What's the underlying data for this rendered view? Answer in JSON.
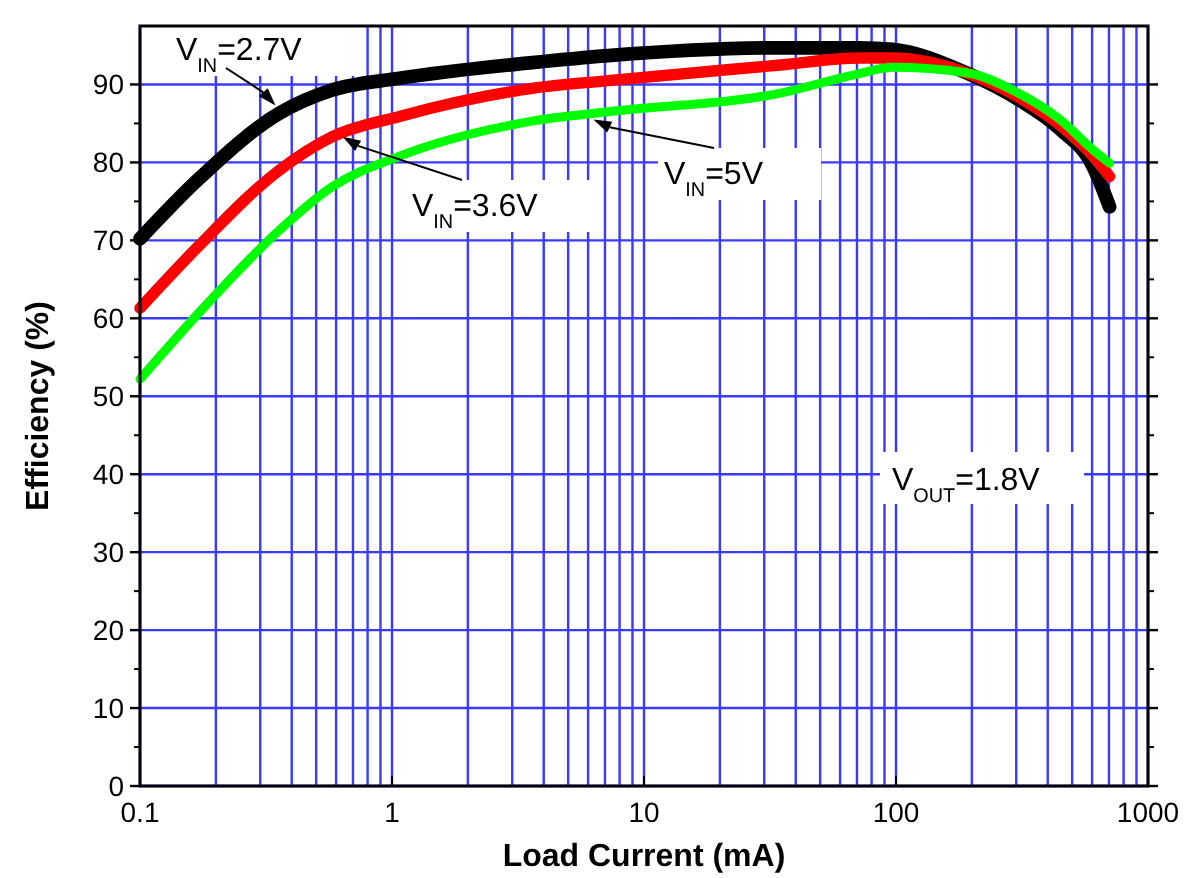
{
  "chart_data": {
    "type": "line",
    "xlabel": "Load Current (mA)",
    "ylabel": "Efficiency (%)",
    "log": "x",
    "grid": true,
    "marker": "none",
    "line_style": "solid",
    "xlim": [
      0.1,
      1000
    ],
    "xticks": [
      0.1,
      1,
      10,
      100,
      1000
    ],
    "ylim": [
      0,
      97.5
    ],
    "yticks": [
      0,
      10,
      20,
      30,
      40,
      50,
      60,
      70,
      80,
      90
    ],
    "x": [
      0.1,
      0.17,
      0.357,
      0.58,
      1.07,
      3.6,
      7.2,
      34.8,
      71.6,
      97,
      190,
      309,
      447,
      605,
      704
    ],
    "series": [
      {
        "color": "#000000",
        "values": [
          70.2,
          77.8,
          86.3,
          89.3,
          90.8,
          92.8,
          93.7,
          94.7,
          94.7,
          94.5,
          91.5,
          88,
          84.3,
          79.5,
          74.3
        ]
      },
      {
        "color": "#ff0000",
        "values": [
          61.3,
          69.2,
          79,
          83.3,
          85.9,
          89.5,
          90.5,
          92.5,
          93.4,
          93.4,
          91.5,
          88.3,
          84.8,
          80.8,
          78.2
        ]
      },
      {
        "color": "#00ff00",
        "values": [
          52.2,
          60.6,
          71.3,
          76.9,
          80.8,
          85.3,
          86.5,
          88.9,
          91.4,
          92.2,
          91.5,
          88.8,
          85.5,
          81.6,
          79.9
        ]
      }
    ],
    "annotations": [
      {
        "text": "V$_{IN}$=2.7V",
        "x": 0.345,
        "y": 87.3
      },
      {
        "text": "V$_{IN}$=3.6V",
        "x": 0.637,
        "y": 83.3
      },
      {
        "text": "V$_{IN}$=5V",
        "x": 6.3,
        "y": 85.5
      },
      "V$_{OUT}$=1.8V"
    ]
  }
}
